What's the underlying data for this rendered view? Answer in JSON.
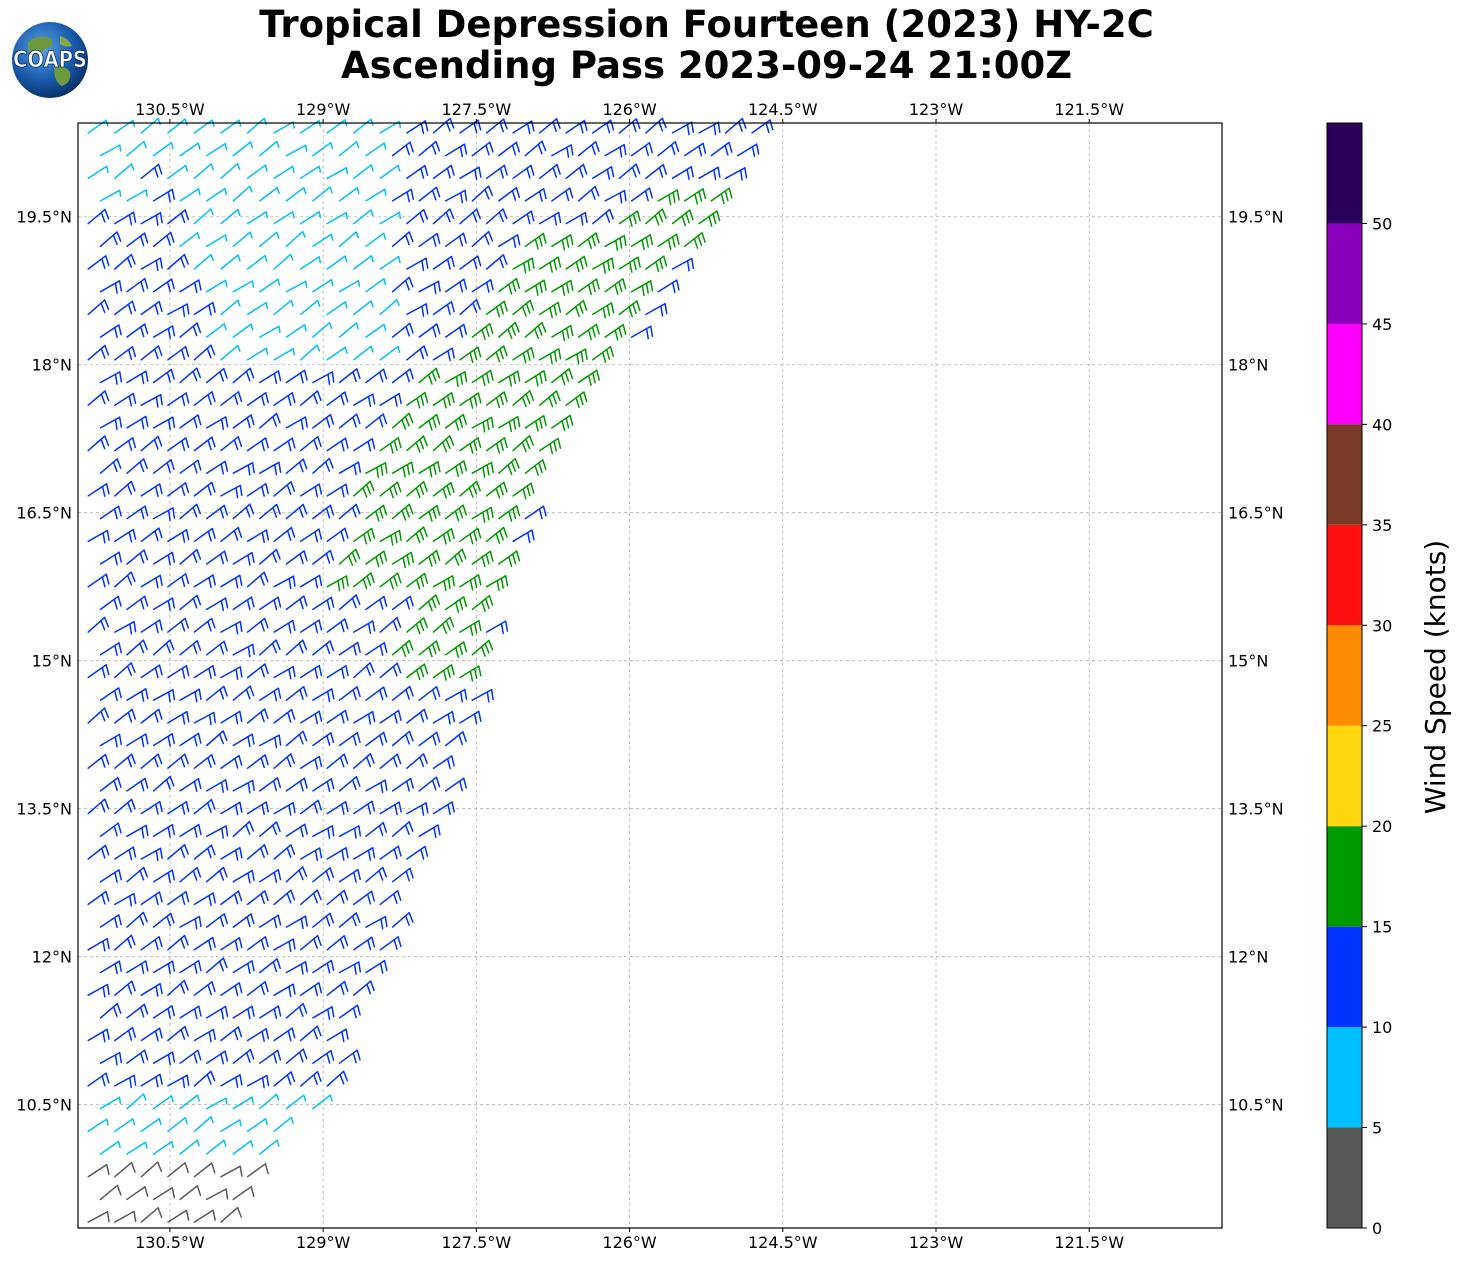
{
  "title": {
    "line1": "Tropical Depression Fourteen (2023) HY-2C",
    "line2": "Ascending Pass 2023-09-24 21:00Z"
  },
  "logo": {
    "text": "COAPS"
  },
  "map": {
    "lon_range": [
      -131.4,
      -120.2
    ],
    "lat_range": [
      9.25,
      20.45
    ],
    "lon_ticks": [
      -130.5,
      -129,
      -127.5,
      -126,
      -124.5,
      -123,
      -121.5
    ],
    "lon_labels": [
      "130.5°W",
      "129°W",
      "127.5°W",
      "126°W",
      "124.5°W",
      "123°W",
      "121.5°W"
    ],
    "lat_ticks": [
      19.5,
      18,
      16.5,
      15,
      13.5,
      12,
      10.5
    ],
    "lat_labels": [
      "19.5°N",
      "18°N",
      "16.5°N",
      "15°N",
      "13.5°N",
      "12°N",
      "10.5°N"
    ],
    "gridlines": true,
    "swath_east_edge": [
      [
        -124.55,
        20.4
      ],
      [
        -125.4,
        19.2
      ],
      [
        -126.15,
        18.0
      ],
      [
        -126.9,
        16.8
      ],
      [
        -127.45,
        15.0
      ],
      [
        -127.6,
        14.2
      ]
    ]
  },
  "colorbar": {
    "label": "Wind Speed (knots)",
    "tick_values": [
      0,
      5,
      10,
      15,
      20,
      25,
      30,
      35,
      40,
      45,
      50
    ],
    "tick_labels": [
      "0",
      "5",
      "10",
      "15",
      "20",
      "25",
      "30",
      "35",
      "40",
      "45",
      "50"
    ],
    "bins": [
      {
        "min": 0,
        "max": 5,
        "color": "#595959"
      },
      {
        "min": 5,
        "max": 10,
        "color": "#00bfff"
      },
      {
        "min": 10,
        "max": 15,
        "color": "#0033ff"
      },
      {
        "min": 15,
        "max": 20,
        "color": "#009900"
      },
      {
        "min": 20,
        "max": 25,
        "color": "#ffd711"
      },
      {
        "min": 25,
        "max": 30,
        "color": "#ff8c00"
      },
      {
        "min": 30,
        "max": 35,
        "color": "#ff1111"
      },
      {
        "min": 35,
        "max": 40,
        "color": "#7b3b29"
      },
      {
        "min": 40,
        "max": 45,
        "color": "#ff00ff"
      },
      {
        "min": 45,
        "max": 50,
        "color": "#8b00bb"
      },
      {
        "min": 50,
        "max": 55,
        "color": "#2a005a"
      }
    ]
  },
  "wind_barb_regions": [
    {
      "speed_class": "5-10",
      "color": "#00bfff",
      "areas": [
        "northwest corner 128.5–131°W 18–20.4°N",
        "southwest corner 129–131°W 9.5–10.6°N"
      ]
    },
    {
      "speed_class": "10-15",
      "color": "#0033ff",
      "areas": [
        "bulk of swath 127–131.4°W 10.5–20.4°N"
      ]
    },
    {
      "speed_class": "15-20",
      "color": "#009900",
      "areas": [
        "eastern band 125–128.5°W 14.8–19.4°N"
      ]
    },
    {
      "speed_class": "0-5",
      "color": "#595959",
      "areas": [
        "far southwest 129.5–131.4°W 9.25–9.9°N"
      ]
    }
  ]
}
